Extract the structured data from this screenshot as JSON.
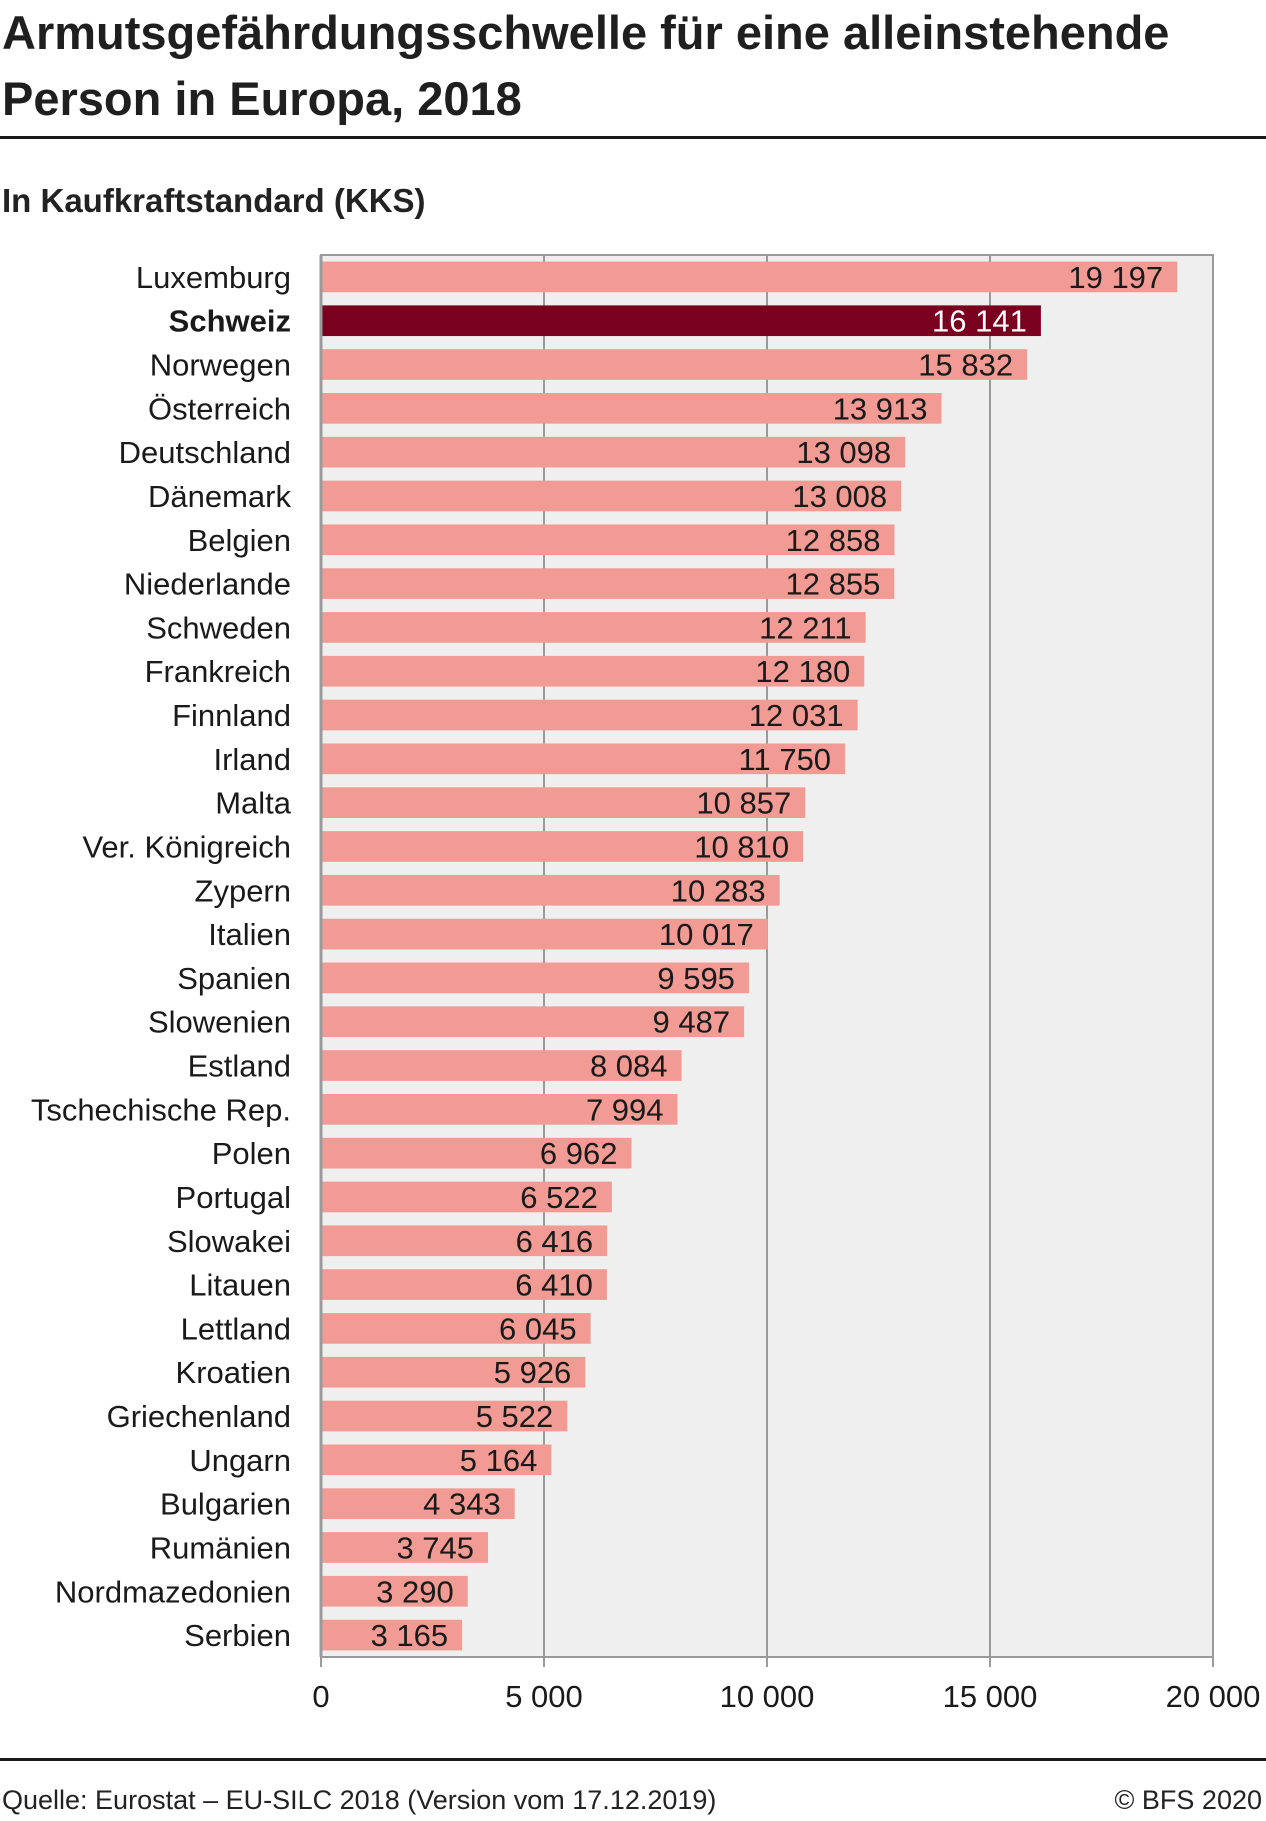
{
  "title": "Armutsgefährdungsschwelle für eine alleinstehende Person in Europa, 2018",
  "subtitle": "In Kaufkraftstandard (KKS)",
  "source": "Quelle: Eurostat – EU-SILC 2018 (Version vom 17.12.2019)",
  "copyright": "© BFS 2020",
  "colors": {
    "bar": "#f29a94",
    "highlight": "#7a0020",
    "plot_bg": "#efefef",
    "grid": "#9a9a9a"
  },
  "chart_data": {
    "type": "bar",
    "orientation": "horizontal",
    "categories": [
      "Luxemburg",
      "Schweiz",
      "Norwegen",
      "Österreich",
      "Deutschland",
      "Dänemark",
      "Belgien",
      "Niederlande",
      "Schweden",
      "Frankreich",
      "Finnland",
      "Irland",
      "Malta",
      "Ver. Königreich",
      "Zypern",
      "Italien",
      "Spanien",
      "Slowenien",
      "Estland",
      "Tschechische Rep.",
      "Polen",
      "Portugal",
      "Slowakei",
      "Litauen",
      "Lettland",
      "Kroatien",
      "Griechenland",
      "Ungarn",
      "Bulgarien",
      "Rumänien",
      "Nordmazedonien",
      "Serbien"
    ],
    "values": [
      19197,
      16141,
      15832,
      13913,
      13098,
      13008,
      12858,
      12855,
      12211,
      12180,
      12031,
      11750,
      10857,
      10810,
      10283,
      10017,
      9595,
      9487,
      8084,
      7994,
      6962,
      6522,
      6416,
      6410,
      6045,
      5926,
      5522,
      5164,
      4343,
      3745,
      3290,
      3165
    ],
    "value_labels": [
      "19 197",
      "16 141",
      "15 832",
      "13 913",
      "13 098",
      "13 008",
      "12 858",
      "12 855",
      "12 211",
      "12 180",
      "12 031",
      "11 750",
      "10 857",
      "10 810",
      "10 283",
      "10 017",
      "9 595",
      "9 487",
      "8 084",
      "7 994",
      "6 962",
      "6 522",
      "6 416",
      "6 410",
      "6 045",
      "5 926",
      "5 522",
      "5 164",
      "4 343",
      "3 745",
      "3 290",
      "3 165"
    ],
    "highlight": "Schweiz",
    "xlim": [
      0,
      20000
    ],
    "xticks": [
      0,
      5000,
      10000,
      15000,
      20000
    ],
    "xtick_labels": [
      "0",
      "5 000",
      "10 000",
      "15 000",
      "20 000"
    ],
    "grid": true
  }
}
